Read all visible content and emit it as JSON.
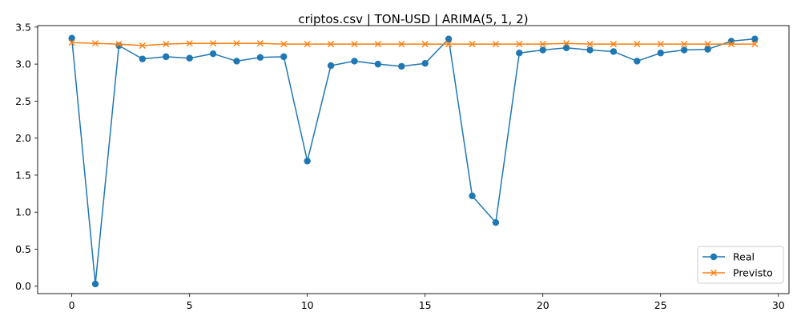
{
  "chart_data": {
    "type": "line",
    "title": "criptos.csv | TON-USD | ARIMA(5, 1, 2)",
    "xlabel": "",
    "ylabel": "",
    "x": [
      0,
      1,
      2,
      3,
      4,
      5,
      6,
      7,
      8,
      9,
      10,
      11,
      12,
      13,
      14,
      15,
      16,
      17,
      18,
      19,
      20,
      21,
      22,
      23,
      24,
      25,
      26,
      27,
      28,
      29
    ],
    "xlim": [
      -1.45,
      30.45
    ],
    "ylim": [
      -0.1,
      3.52
    ],
    "xticks": [
      0,
      5,
      10,
      15,
      20,
      25,
      30
    ],
    "xtick_labels": [
      "0",
      "5",
      "10",
      "15",
      "20",
      "25",
      "30"
    ],
    "yticks": [
      0.0,
      0.5,
      1.0,
      1.5,
      2.0,
      2.5,
      3.0,
      3.5
    ],
    "ytick_labels": [
      "0.0",
      "0.5",
      "1.0",
      "1.5",
      "2.0",
      "2.5",
      "3.0",
      "3.5"
    ],
    "grid": false,
    "legend_position": "lower-right",
    "series": [
      {
        "name": "Real",
        "color": "#1f77b4",
        "marker": "circle",
        "values": [
          3.35,
          0.03,
          3.25,
          3.07,
          3.1,
          3.08,
          3.14,
          3.04,
          3.09,
          3.1,
          1.69,
          2.98,
          3.04,
          3.0,
          2.97,
          3.01,
          3.34,
          1.22,
          0.86,
          3.15,
          3.19,
          3.22,
          3.19,
          3.17,
          3.04,
          3.15,
          3.19,
          3.2,
          3.31,
          3.34
        ]
      },
      {
        "name": "Previsto",
        "color": "#ff7f0e",
        "marker": "x",
        "values": [
          3.29,
          3.28,
          3.27,
          3.25,
          3.27,
          3.28,
          3.28,
          3.28,
          3.28,
          3.27,
          3.27,
          3.27,
          3.27,
          3.27,
          3.27,
          3.27,
          3.27,
          3.27,
          3.27,
          3.27,
          3.27,
          3.28,
          3.27,
          3.27,
          3.27,
          3.27,
          3.27,
          3.27,
          3.27,
          3.27
        ]
      }
    ]
  }
}
